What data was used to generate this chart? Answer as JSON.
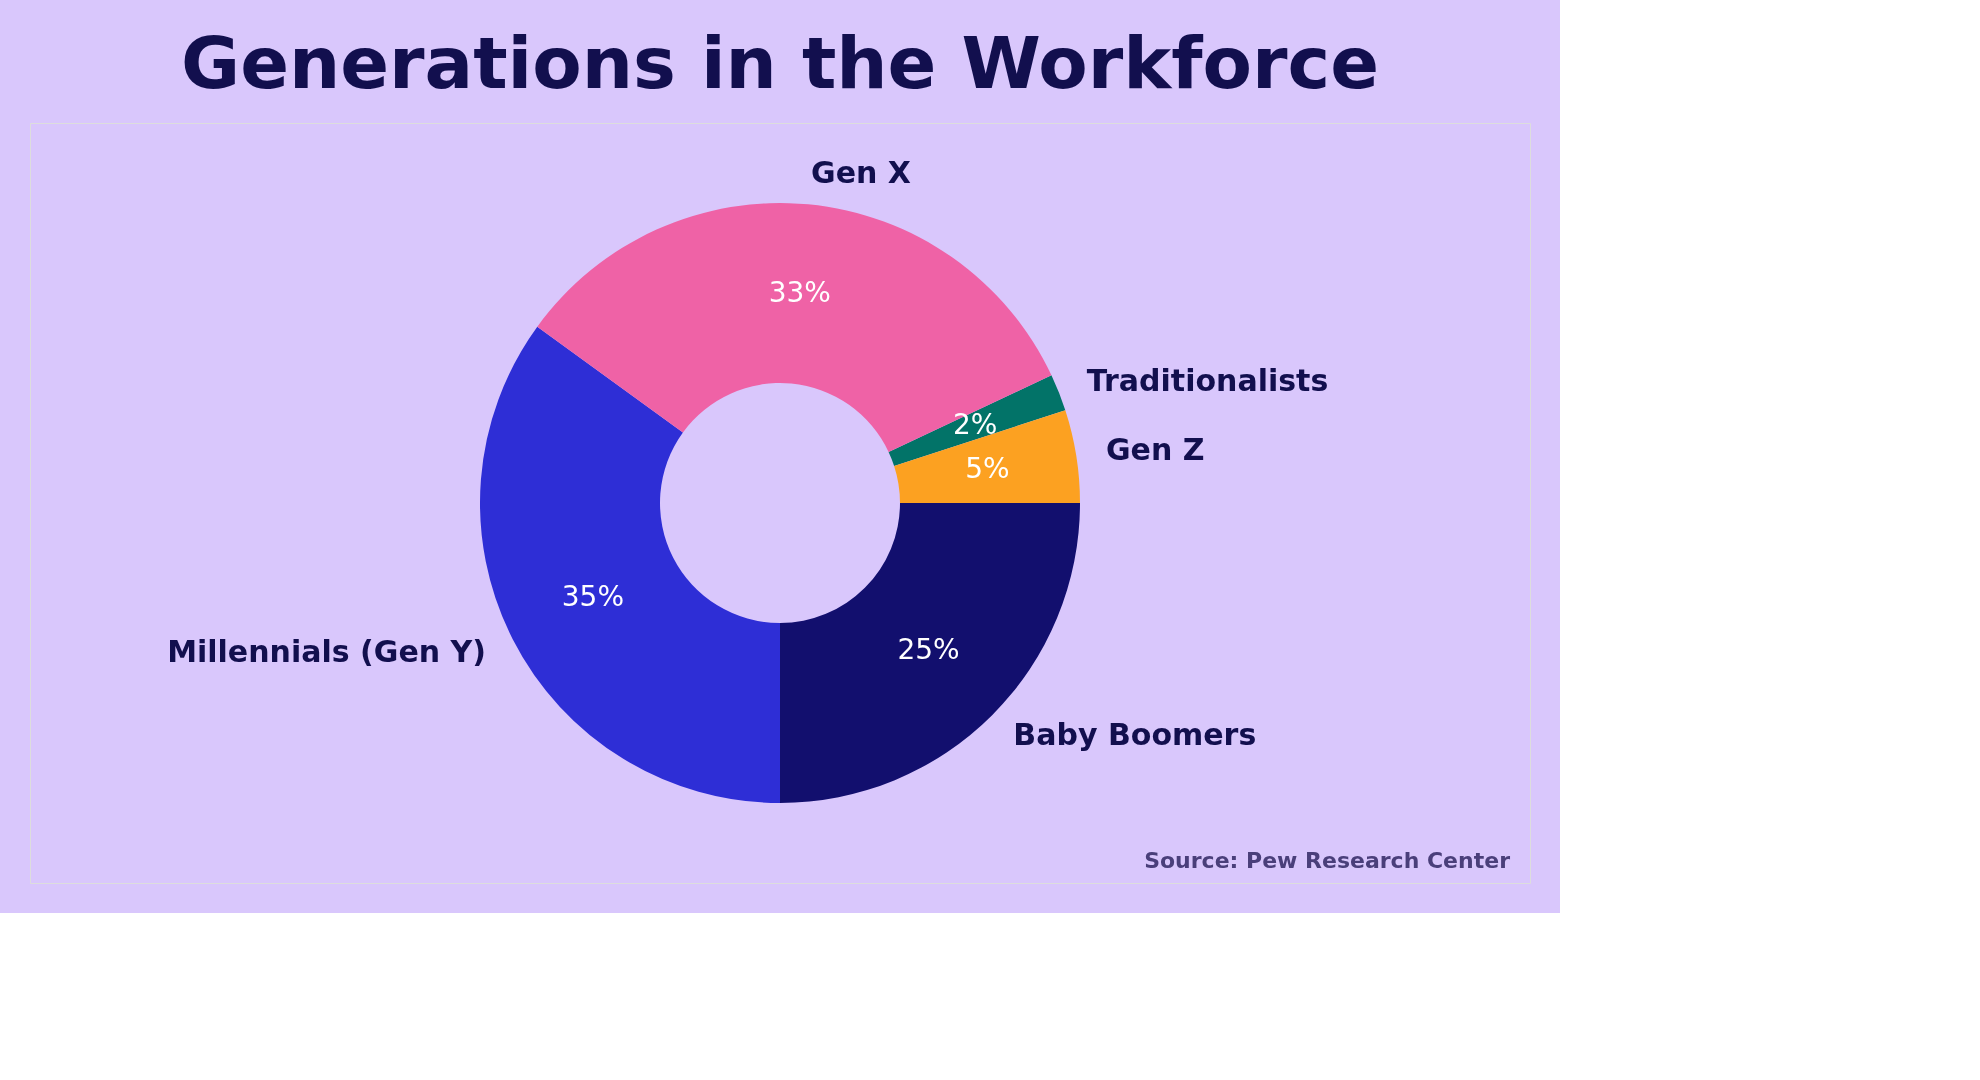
{
  "chart_data": {
    "type": "donut",
    "title": "Generations in the Workforce",
    "categories": [
      "Traditionalists",
      "Gen Z",
      "Baby Boomers",
      "Millennials (Gen Y)",
      "Gen X"
    ],
    "values": [
      2,
      5,
      25,
      35,
      33
    ],
    "colors": [
      "#027368",
      "#fca121",
      "#120f6e",
      "#2e2ed6",
      "#ef62a6"
    ],
    "value_labels": [
      "2%",
      "5%",
      "25%",
      "35%",
      "33%"
    ],
    "legend": false,
    "annotations": [
      "Source: Pew Research Center"
    ]
  }
}
